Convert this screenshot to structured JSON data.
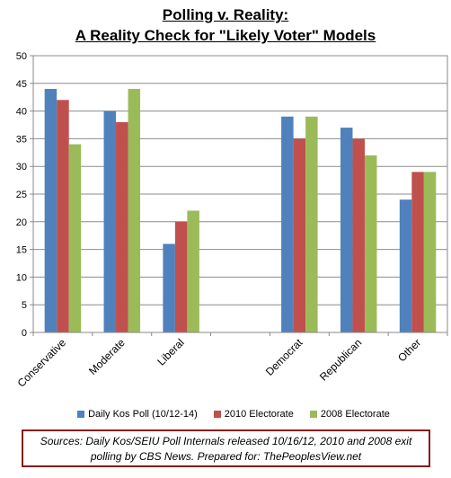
{
  "chart_data": {
    "type": "bar",
    "title_lines": [
      "Polling v. Reality:",
      "A Reality Check for \"Likely Voter\" Models"
    ],
    "categories": [
      "Conservative",
      "Moderate",
      "Liberal",
      "",
      "Democrat",
      "Republican",
      "Other"
    ],
    "series": [
      {
        "name": "Daily Kos Poll (10/12-14)",
        "color": "#4f81bd",
        "values": [
          44,
          40,
          16,
          null,
          39,
          37,
          24
        ]
      },
      {
        "name": "2010 Electorate",
        "color": "#c0504d",
        "values": [
          42,
          38,
          20,
          null,
          35,
          35,
          29
        ]
      },
      {
        "name": "2008 Electorate",
        "color": "#9bbb59",
        "values": [
          34,
          44,
          22,
          null,
          39,
          32,
          29
        ]
      }
    ],
    "ylim": [
      0,
      50
    ],
    "yticks": [
      0,
      5,
      10,
      15,
      20,
      25,
      30,
      35,
      40,
      45,
      50
    ],
    "grid": true,
    "legend_position": "bottom"
  },
  "sources_text": "Sources: Daily Kos/SEIU Poll Internals released 10/16/12,  2010 and 2008 exit polling by CBS News. Prepared for: ThePeoplesView.net"
}
